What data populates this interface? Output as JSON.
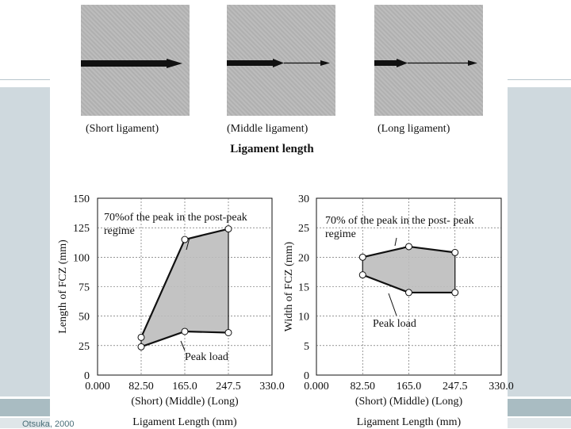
{
  "top": {
    "specimens": [
      {
        "label": "(Short ligament)"
      },
      {
        "label": "(Middle ligament)"
      },
      {
        "label": "(Long ligament)"
      }
    ],
    "title": "Ligament length"
  },
  "citation": "Otsuka, 2000",
  "chart_data": [
    {
      "type": "area",
      "ylabel": "Length of FCZ (mm)",
      "xlabel": "Ligament Length (mm)",
      "x_tick_labels": [
        "0.000",
        "82.50",
        "165.0",
        "247.5",
        "330.0"
      ],
      "x_category_text": "(Short) (Middle) (Long)",
      "y_ticks": [
        "150",
        "125",
        "100",
        "75",
        "50",
        "25",
        "0"
      ],
      "xlim": [
        0,
        330
      ],
      "ylim": [
        0,
        150
      ],
      "grid": true,
      "series": [
        {
          "name": "70%of the peak in the post-peak regime",
          "x": [
            82.5,
            165.0,
            247.5
          ],
          "values": [
            32,
            115,
            124
          ]
        },
        {
          "name": "Peak load",
          "x": [
            82.5,
            165.0,
            247.5
          ],
          "values": [
            24,
            37,
            36
          ]
        }
      ],
      "annotations": [
        "70%of the peak in the post-peak",
        "regime",
        "Peak load"
      ]
    },
    {
      "type": "area",
      "ylabel": "Width of FCZ (mm)",
      "xlabel": "Ligament Length (mm)",
      "x_tick_labels": [
        "0.000",
        "82.50",
        "165.0",
        "247.5",
        "330.0"
      ],
      "x_category_text": "(Short) (Middle) (Long)",
      "y_ticks": [
        "30",
        "25",
        "20",
        "15",
        "10",
        "5",
        "0"
      ],
      "xlim": [
        0,
        330
      ],
      "ylim": [
        0,
        30
      ],
      "grid": true,
      "series": [
        {
          "name": "70% of the peak in the post- peak regime",
          "x": [
            82.5,
            165.0,
            247.5
          ],
          "values": [
            20,
            21.8,
            20.8
          ]
        },
        {
          "name": "Peak load",
          "x": [
            82.5,
            165.0,
            247.5
          ],
          "values": [
            17,
            14,
            14
          ]
        }
      ],
      "annotations": [
        "70% of the peak in the post- peak",
        "regime",
        "Peak load"
      ]
    }
  ]
}
